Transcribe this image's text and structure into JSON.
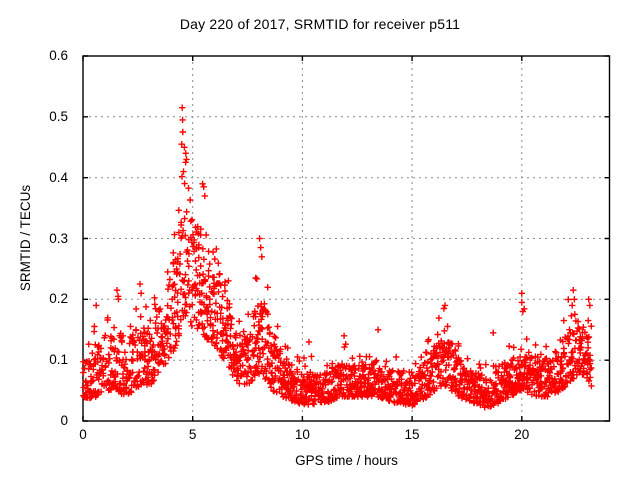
{
  "title": "Day 220 of 2017, SRMTID for receiver p511",
  "x_axis": {
    "label": "GPS time / hours",
    "min": 0,
    "max": 24,
    "ticks": [
      {
        "v": 0,
        "label": "0"
      },
      {
        "v": 5,
        "label": "5"
      },
      {
        "v": 10,
        "label": "10"
      },
      {
        "v": 15,
        "label": "15"
      },
      {
        "v": 20,
        "label": "20"
      }
    ]
  },
  "y_axis": {
    "label": "SRMTID / TECUs",
    "min": 0,
    "max": 0.6,
    "ticks": [
      {
        "v": 0.0,
        "label": "0"
      },
      {
        "v": 0.1,
        "label": "0.1"
      },
      {
        "v": 0.2,
        "label": "0.2"
      },
      {
        "v": 0.3,
        "label": "0.3"
      },
      {
        "v": 0.4,
        "label": "0.4"
      },
      {
        "v": 0.5,
        "label": "0.5"
      },
      {
        "v": 0.6,
        "label": "0.6"
      }
    ]
  },
  "style": {
    "marker_color": "#ff0000",
    "grid_color": "#8c8c8c",
    "frame_color": "#000000",
    "text_color": "#000000",
    "background": "#ffffff"
  },
  "chart_data": {
    "type": "scatter",
    "title": "Day 220 of 2017, SRMTID for receiver p511",
    "xlabel": "GPS time / hours",
    "ylabel": "SRMTID / TECUs",
    "xlim": [
      0,
      24
    ],
    "ylim": [
      0,
      0.6
    ],
    "grid": true,
    "marker": "+",
    "series_name": "SRMTID",
    "data_t_start": 0.02,
    "data_t_end": 23.2,
    "epoch_step_hours": 0.05,
    "seed": 2017220,
    "envelope_note": "piecewise-linear band read off the plot: [t_hours, band_low, band_high, tail_max]",
    "envelope": [
      [
        0.0,
        0.035,
        0.09,
        0.12
      ],
      [
        0.6,
        0.04,
        0.12,
        0.17
      ],
      [
        1.0,
        0.05,
        0.14,
        0.18
      ],
      [
        1.5,
        0.05,
        0.16,
        0.22
      ],
      [
        2.0,
        0.04,
        0.13,
        0.16
      ],
      [
        2.65,
        0.06,
        0.17,
        0.23
      ],
      [
        3.1,
        0.06,
        0.15,
        0.18
      ],
      [
        3.7,
        0.09,
        0.2,
        0.26
      ],
      [
        4.2,
        0.12,
        0.27,
        0.34
      ],
      [
        4.55,
        0.16,
        0.4,
        0.5
      ],
      [
        4.8,
        0.16,
        0.37,
        0.45
      ],
      [
        5.2,
        0.15,
        0.33,
        0.42
      ],
      [
        5.6,
        0.13,
        0.3,
        0.39
      ],
      [
        6.1,
        0.12,
        0.26,
        0.3
      ],
      [
        6.6,
        0.09,
        0.2,
        0.24
      ],
      [
        7.2,
        0.05,
        0.13,
        0.16
      ],
      [
        7.6,
        0.06,
        0.15,
        0.2
      ],
      [
        8.1,
        0.08,
        0.22,
        0.29
      ],
      [
        8.6,
        0.05,
        0.15,
        0.21
      ],
      [
        9.1,
        0.04,
        0.11,
        0.14
      ],
      [
        9.7,
        0.03,
        0.085,
        0.11
      ],
      [
        10.4,
        0.025,
        0.075,
        0.12
      ],
      [
        11.1,
        0.03,
        0.08,
        0.1
      ],
      [
        11.9,
        0.04,
        0.1,
        0.135
      ],
      [
        12.6,
        0.04,
        0.09,
        0.12
      ],
      [
        13.4,
        0.04,
        0.1,
        0.13
      ],
      [
        14.2,
        0.03,
        0.085,
        0.11
      ],
      [
        15.0,
        0.025,
        0.075,
        0.1
      ],
      [
        15.7,
        0.04,
        0.1,
        0.13
      ],
      [
        16.45,
        0.06,
        0.15,
        0.19
      ],
      [
        17.1,
        0.04,
        0.11,
        0.14
      ],
      [
        17.8,
        0.03,
        0.085,
        0.11
      ],
      [
        18.5,
        0.02,
        0.065,
        0.09
      ],
      [
        19.2,
        0.035,
        0.09,
        0.12
      ],
      [
        20.0,
        0.05,
        0.12,
        0.2
      ],
      [
        20.6,
        0.04,
        0.1,
        0.13
      ],
      [
        21.4,
        0.04,
        0.1,
        0.125
      ],
      [
        22.1,
        0.06,
        0.15,
        0.21
      ],
      [
        22.65,
        0.08,
        0.17,
        0.205
      ],
      [
        23.2,
        0.055,
        0.13,
        0.17
      ]
    ],
    "outliers": [
      [
        0.6,
        0.19
      ],
      [
        1.55,
        0.215
      ],
      [
        1.6,
        0.205
      ],
      [
        2.6,
        0.225
      ],
      [
        2.65,
        0.21
      ],
      [
        4.52,
        0.515
      ],
      [
        4.54,
        0.495
      ],
      [
        4.55,
        0.475
      ],
      [
        4.5,
        0.455
      ],
      [
        4.62,
        0.45
      ],
      [
        4.68,
        0.44
      ],
      [
        4.72,
        0.43
      ],
      [
        4.58,
        0.41
      ],
      [
        5.45,
        0.39
      ],
      [
        5.5,
        0.385
      ],
      [
        5.55,
        0.37
      ],
      [
        8.05,
        0.3
      ],
      [
        8.1,
        0.285
      ],
      [
        8.15,
        0.27
      ],
      [
        10.3,
        0.13
      ],
      [
        11.9,
        0.14
      ],
      [
        13.45,
        0.15
      ],
      [
        16.5,
        0.19
      ],
      [
        16.45,
        0.185
      ],
      [
        18.7,
        0.145
      ],
      [
        20.0,
        0.21
      ],
      [
        20.0,
        0.195
      ],
      [
        20.05,
        0.18
      ],
      [
        22.35,
        0.215
      ],
      [
        22.4,
        0.2
      ],
      [
        22.3,
        0.19
      ],
      [
        23.05,
        0.2
      ],
      [
        23.1,
        0.19
      ]
    ]
  }
}
